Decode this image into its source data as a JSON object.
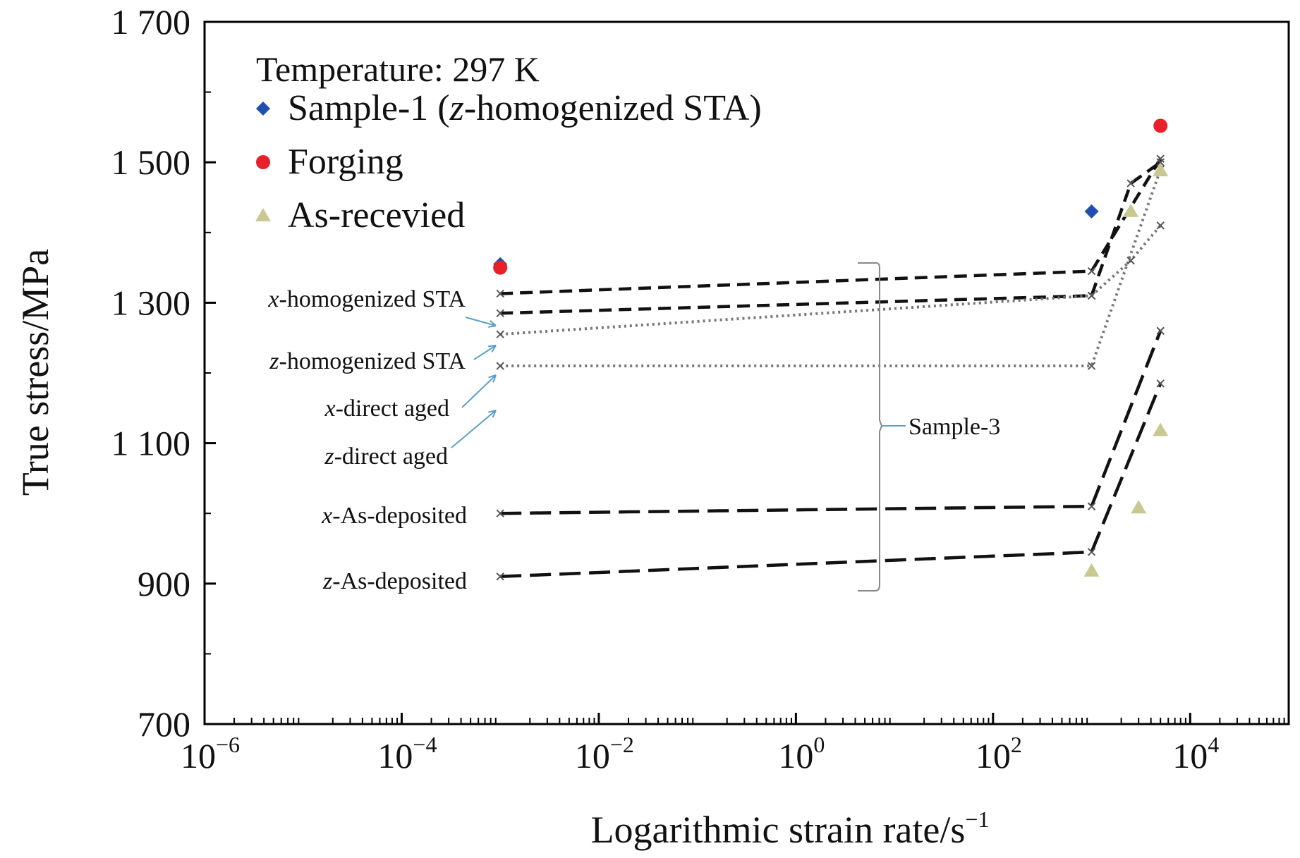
{
  "chart_data": {
    "type": "line",
    "xscale": "log",
    "xlim": [
      1e-06,
      100000
    ],
    "ylim": [
      700,
      1700
    ],
    "xlabel": "Logarithmic strain rate/s",
    "xlabel_sup": "−1",
    "ylabel": "True stress/MPa",
    "yticks": [
      {
        "value": 1700,
        "label": "1 700"
      },
      {
        "value": 1500,
        "label": "1 500"
      },
      {
        "value": 1300,
        "label": "1 300"
      },
      {
        "value": 1100,
        "label": "1 100"
      },
      {
        "value": 900,
        "label": "900"
      },
      {
        "value": 700,
        "label": "700"
      }
    ],
    "xticks": [
      {
        "value": 1e-06,
        "base": "10",
        "exp": "−6"
      },
      {
        "value": 0.0001,
        "base": "10",
        "exp": "−4"
      },
      {
        "value": 0.01,
        "base": "10",
        "exp": "−2"
      },
      {
        "value": 1,
        "base": "10",
        "exp": "0"
      },
      {
        "value": 100,
        "base": "10",
        "exp": "2"
      },
      {
        "value": 10000,
        "base": "10",
        "exp": "4"
      }
    ],
    "legend": {
      "title": "Temperature: 297 K",
      "position": "top-left",
      "entries": [
        {
          "key": "sample1",
          "pre": "Sample-1 (",
          "italic": "z",
          "post": "-homogenized STA)",
          "marker": "diamond",
          "color": "#1f4fb0"
        },
        {
          "key": "forging",
          "pre": "Forging",
          "italic": "",
          "post": "",
          "marker": "circle",
          "color": "#e8202a"
        },
        {
          "key": "asrec",
          "pre": "As-recevied",
          "italic": "",
          "post": "",
          "marker": "triangle",
          "color": "#c8c890"
        }
      ]
    },
    "scatter_series": [
      {
        "key": "sample1",
        "marker": "diamond",
        "color": "#1f4fb0",
        "points": [
          [
            0.001,
            1355
          ],
          [
            1000,
            1430
          ]
        ]
      },
      {
        "key": "forging",
        "marker": "circle",
        "color": "#e8202a",
        "points": [
          [
            0.001,
            1350
          ],
          [
            5000,
            1552
          ]
        ]
      },
      {
        "key": "asrec",
        "marker": "triangle",
        "color": "#c8c890",
        "points": [
          [
            1000,
            918
          ],
          [
            3000,
            1008
          ],
          [
            5000,
            1118
          ],
          [
            2500,
            1430
          ],
          [
            5000,
            1488
          ]
        ]
      }
    ],
    "series": [
      {
        "name": "x-homogenized STA",
        "style": "dashed",
        "color": "#111111",
        "points": [
          [
            0.001,
            1313
          ],
          [
            1000,
            1345
          ],
          [
            5000,
            1505
          ]
        ]
      },
      {
        "name": "z-homogenized STA",
        "style": "dashed",
        "color": "#111111",
        "points": [
          [
            0.001,
            1285
          ],
          [
            1000,
            1310
          ],
          [
            2500,
            1470
          ],
          [
            5000,
            1500
          ]
        ]
      },
      {
        "name": "x-direct aged",
        "style": "dotted",
        "color": "#777777",
        "points": [
          [
            0.001,
            1255
          ],
          [
            1000,
            1310
          ],
          [
            2500,
            1360
          ],
          [
            5000,
            1410
          ]
        ]
      },
      {
        "name": "z-direct aged",
        "style": "dotted",
        "color": "#777777",
        "points": [
          [
            0.001,
            1210
          ],
          [
            1000,
            1210
          ],
          [
            5000,
            1490
          ]
        ]
      },
      {
        "name": "x-As-deposited",
        "style": "longdash",
        "color": "#111111",
        "points": [
          [
            0.001,
            1000
          ],
          [
            1000,
            1010
          ],
          [
            5000,
            1260
          ]
        ]
      },
      {
        "name": "z-As-deposited",
        "style": "longdash",
        "color": "#111111",
        "points": [
          [
            0.001,
            910
          ],
          [
            1000,
            945
          ],
          [
            5000,
            1185
          ]
        ]
      }
    ],
    "annotations": [
      {
        "key": "xhom",
        "italic": "x",
        "text": "-homogenized STA"
      },
      {
        "key": "zhom",
        "italic": "z",
        "text": "-homogenized STA"
      },
      {
        "key": "xda",
        "italic": "x",
        "text": "-direct aged"
      },
      {
        "key": "zda",
        "italic": "z",
        "text": "-direct aged"
      },
      {
        "key": "xad",
        "italic": "x",
        "text": "-As-deposited"
      },
      {
        "key": "zad",
        "italic": "z",
        "text": "-As-deposited"
      },
      {
        "key": "s3",
        "italic": "",
        "text": "Sample-3"
      }
    ],
    "grid": false
  }
}
